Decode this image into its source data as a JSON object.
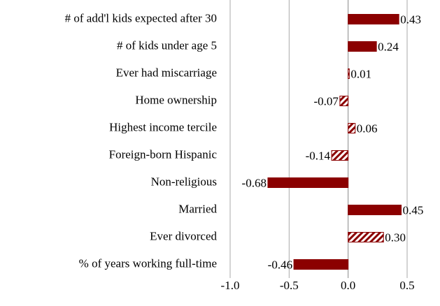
{
  "chart_data": {
    "type": "bar",
    "orientation": "horizontal",
    "categories": [
      "# of add'l kids expected after 30",
      "# of kids under age 5",
      "Ever had miscarriage",
      "Home ownership",
      "Highest income tercile",
      "Foreign-born Hispanic",
      "Non-religious",
      "Married",
      "Ever divorced",
      "% of years working full-time"
    ],
    "values": [
      0.43,
      0.24,
      0.01,
      -0.07,
      0.06,
      -0.14,
      -0.68,
      0.45,
      0.3,
      -0.46
    ],
    "value_labels": [
      "0.43",
      "0.24",
      "0.01",
      "-0.07",
      "0.06",
      "-0.14",
      "-0.68",
      "0.45",
      "0.30",
      "-0.46"
    ],
    "hatched": [
      false,
      false,
      true,
      true,
      true,
      true,
      false,
      false,
      true,
      false
    ],
    "color": "#8b0000",
    "xlim": [
      -1.0,
      0.5
    ],
    "xticks": [
      {
        "value": -1.0,
        "label": "-1.0"
      },
      -0.5,
      {
        "value": 0.0,
        "label": "0.0"
      },
      0.5
    ],
    "grid": true
  }
}
